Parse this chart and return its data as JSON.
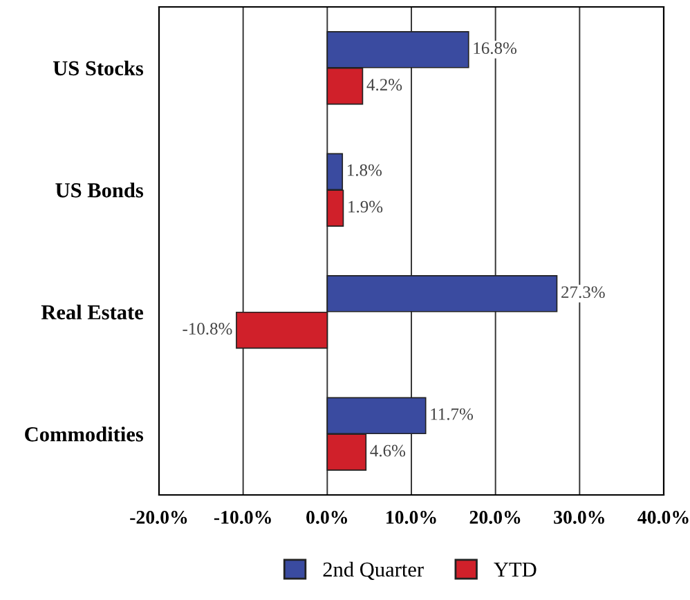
{
  "chart_data": {
    "type": "bar",
    "orientation": "horizontal",
    "categories": [
      "US Stocks",
      "US Bonds",
      "Real Estate",
      "Commodities"
    ],
    "series": [
      {
        "name": "2nd Quarter",
        "color": "#3a4ba0",
        "values": [
          16.8,
          1.8,
          27.3,
          11.7
        ],
        "value_labels": [
          "16.8%",
          "1.8%",
          "27.3%",
          "11.7%"
        ]
      },
      {
        "name": "YTD",
        "color": "#d0202a",
        "values": [
          4.2,
          1.9,
          -10.8,
          4.6
        ],
        "value_labels": [
          "4.2%",
          "1.9%",
          "-10.8%",
          "4.6%"
        ]
      }
    ],
    "xlim": [
      -20,
      40
    ],
    "xticks": [
      {
        "value": -20,
        "label": "-20.0%"
      },
      {
        "value": -10,
        "label": "-10.0%"
      },
      {
        "value": 0,
        "label": "0.0%"
      },
      {
        "value": 10,
        "label": "10.0%"
      },
      {
        "value": 20,
        "label": "20.0%"
      },
      {
        "value": 30,
        "label": "30.0%"
      },
      {
        "value": 40,
        "label": "40.0%"
      }
    ],
    "grid": "x",
    "legend": "bottom"
  }
}
